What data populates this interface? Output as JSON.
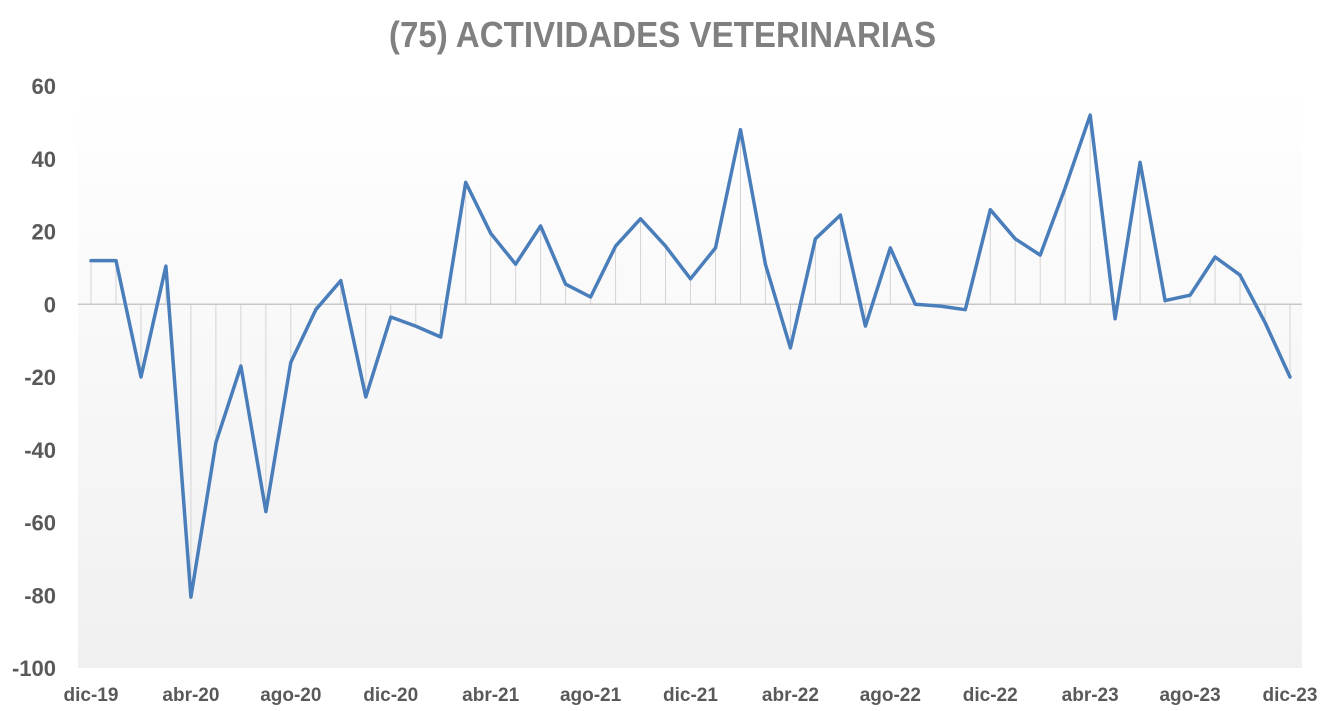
{
  "chart_data": {
    "type": "line",
    "title": "(75) ACTIVIDADES VETERINARIAS",
    "xlabel": "",
    "ylabel": "",
    "ylim": [
      -100,
      60
    ],
    "yticks": [
      60,
      40,
      20,
      0,
      -20,
      -40,
      -60,
      -80,
      -100
    ],
    "x_tick_labels": [
      "dic-19",
      "abr-20",
      "ago-20",
      "dic-20",
      "abr-21",
      "ago-21",
      "dic-21",
      "abr-22",
      "ago-22",
      "dic-22",
      "abr-23",
      "ago-23",
      "dic-23"
    ],
    "x_tick_every": 4,
    "grid": false,
    "drop_lines": true,
    "line_color": "#4a7ebb",
    "series": [
      {
        "values": [
          12,
          12,
          -20,
          10.5,
          -80.5,
          -38,
          -17,
          -57,
          -16,
          -1.5,
          6.5,
          -25.5,
          -3.5,
          -6,
          -9,
          33.5,
          19.5,
          11,
          21.5,
          5.5,
          2,
          16,
          23.5,
          16,
          7,
          15.5,
          48,
          11,
          -12,
          18,
          24.5,
          -6,
          15.5,
          0,
          -0.5,
          -1.5,
          26,
          18,
          13.5,
          32,
          52,
          -4,
          39,
          1,
          2.5,
          13,
          8,
          -5,
          -20
        ]
      }
    ]
  }
}
